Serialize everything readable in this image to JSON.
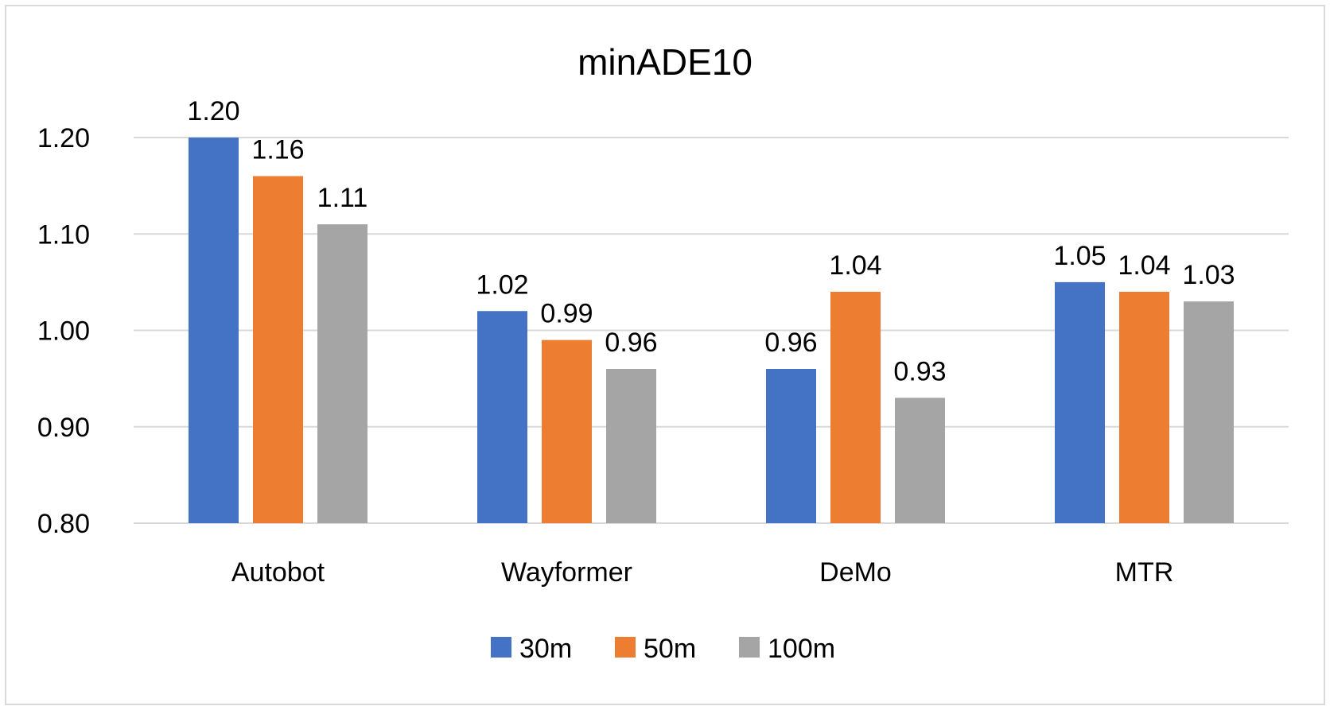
{
  "chart_data": {
    "type": "bar",
    "title": "minADE10",
    "categories": [
      "Autobot",
      "Wayformer",
      "DeMo",
      "MTR"
    ],
    "series": [
      {
        "name": "30m",
        "color": "#4472c4",
        "values": [
          1.2,
          1.02,
          0.96,
          1.05
        ]
      },
      {
        "name": "50m",
        "color": "#ed7d31",
        "values": [
          1.16,
          0.99,
          1.04,
          1.04
        ]
      },
      {
        "name": "100m",
        "color": "#a5a5a5",
        "values": [
          1.11,
          0.96,
          0.93,
          1.03
        ]
      }
    ],
    "data_labels": [
      [
        "1.20",
        "1.02",
        "0.96",
        "1.05"
      ],
      [
        "1.16",
        "0.99",
        "1.04",
        "1.04"
      ],
      [
        "1.11",
        "0.96",
        "0.93",
        "1.03"
      ]
    ],
    "yticks": [
      "0.80",
      "0.90",
      "1.00",
      "1.10",
      "1.20"
    ],
    "ylim": [
      0.8,
      1.2
    ],
    "xlabel": "",
    "ylabel": "",
    "grid": true,
    "legend": "bottom"
  }
}
